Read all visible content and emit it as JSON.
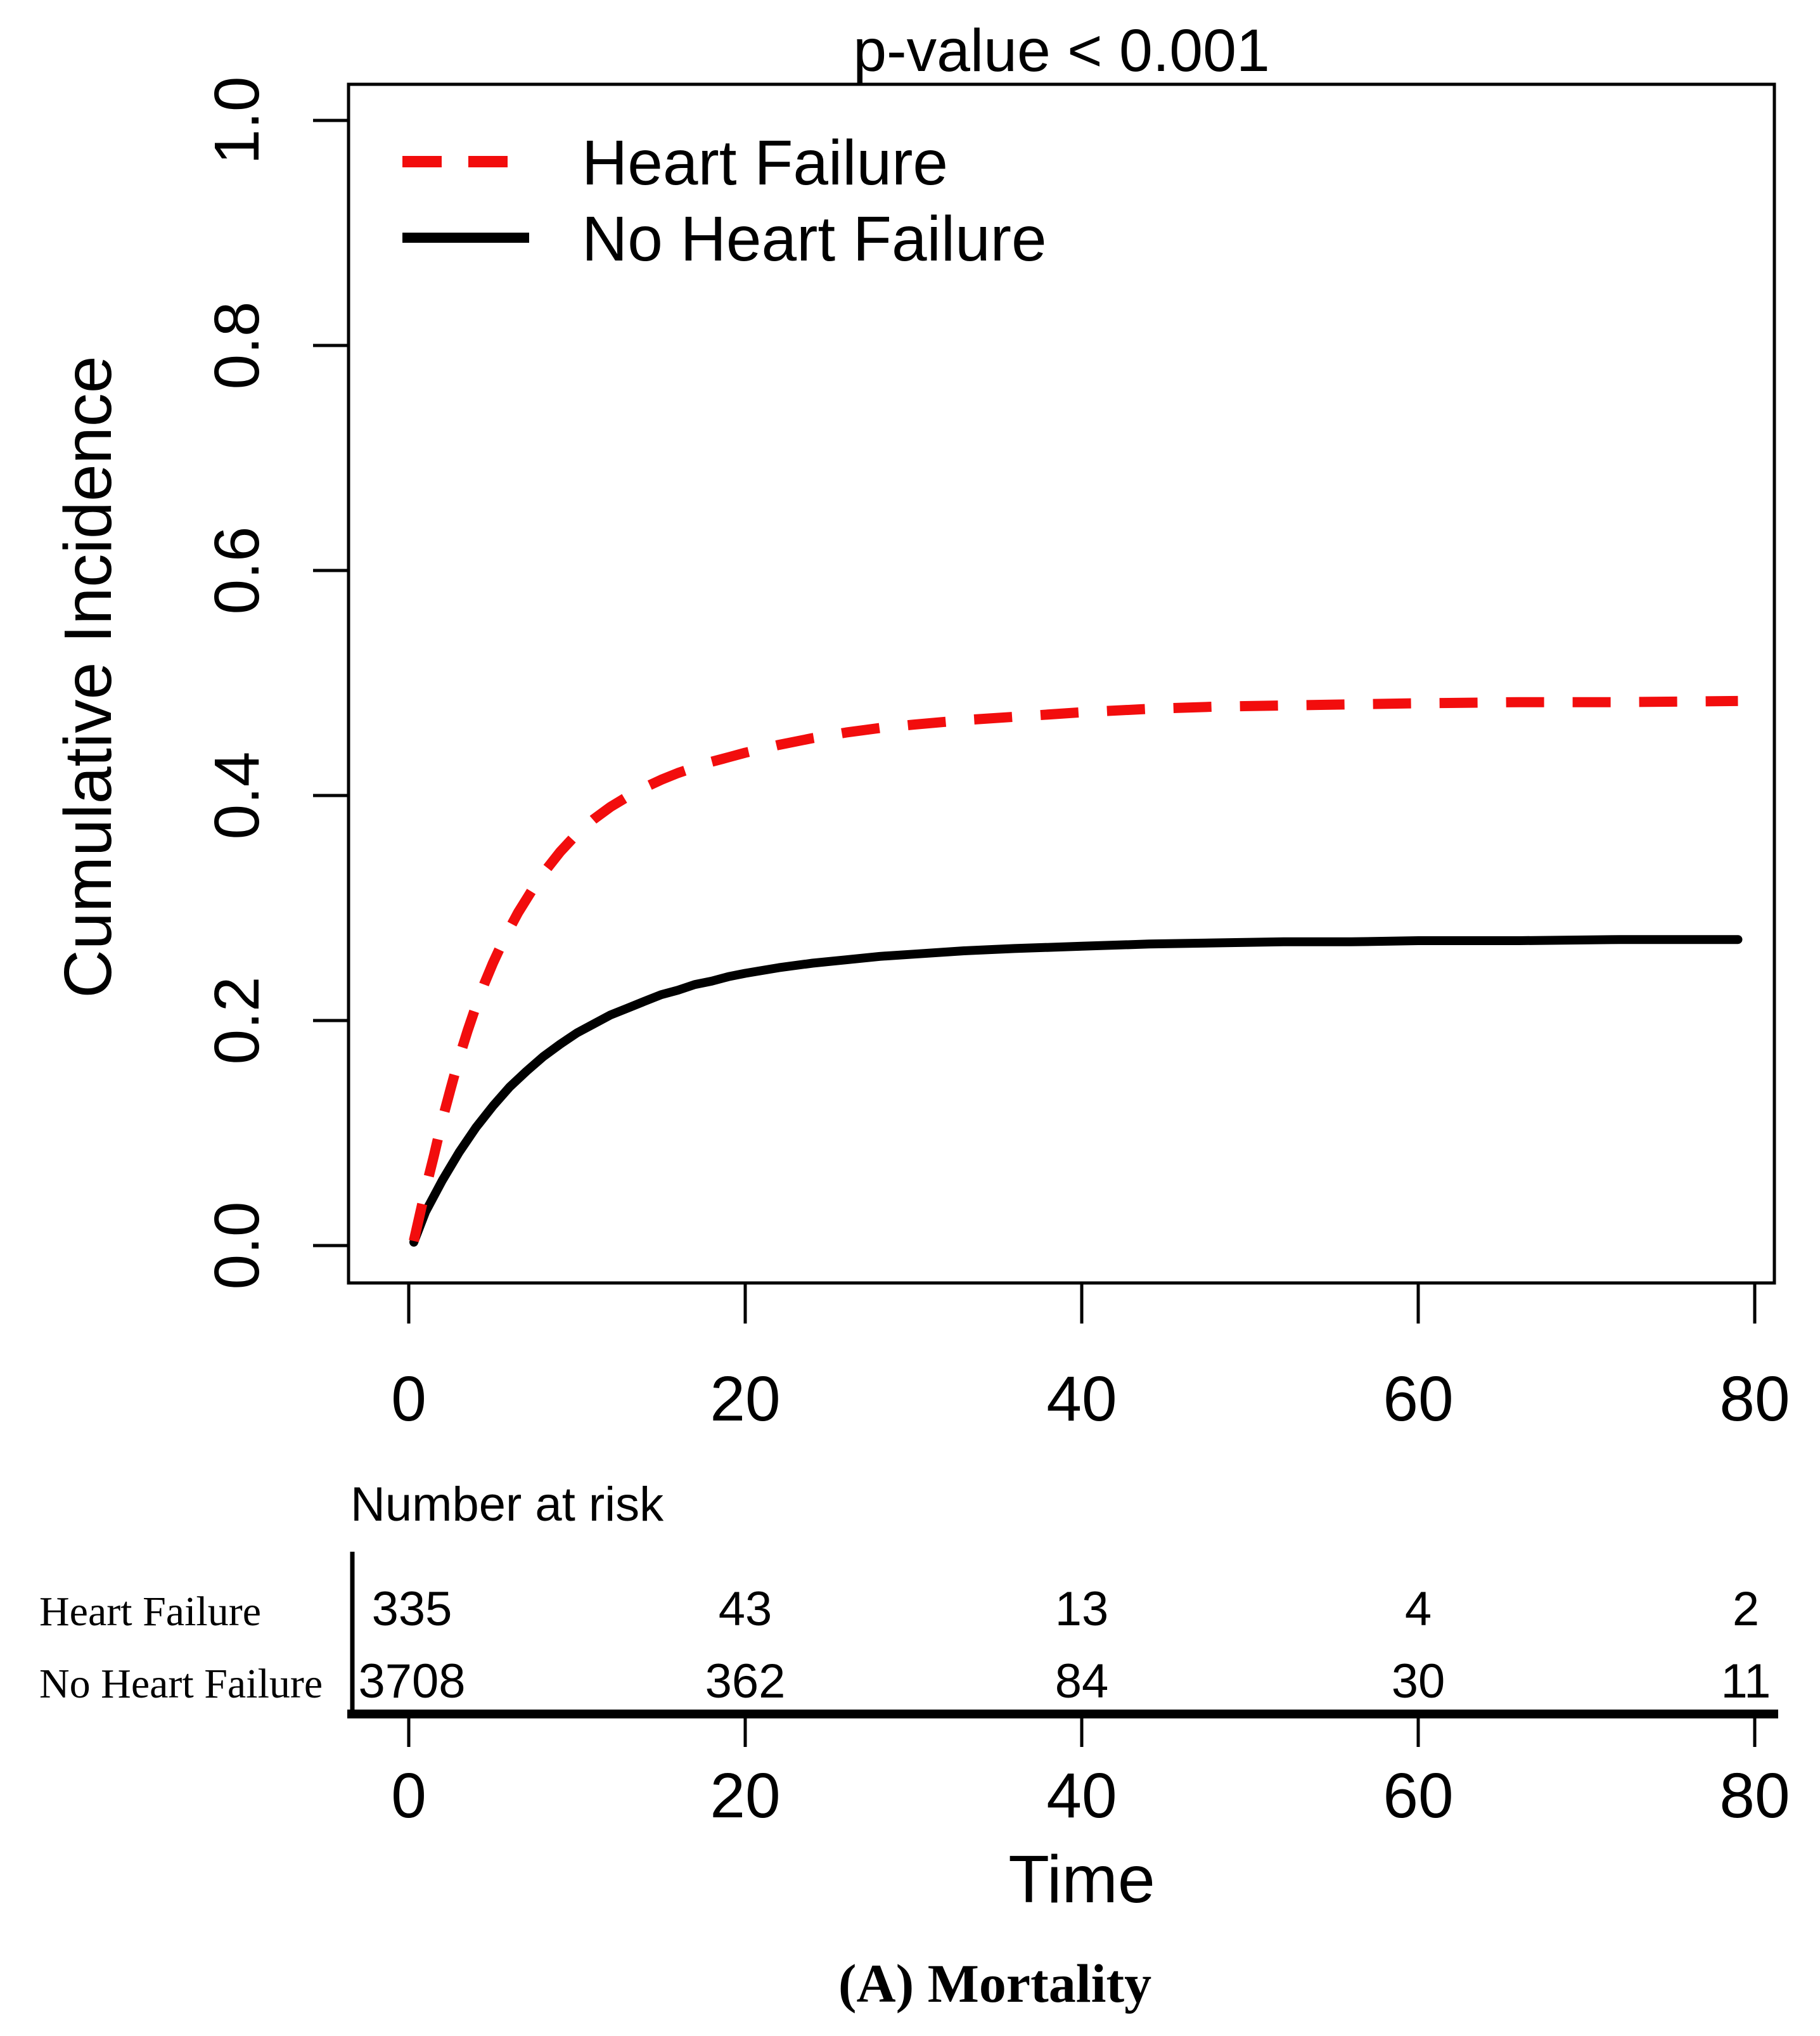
{
  "caption": "(A) Mortality",
  "legend": {
    "items": [
      {
        "label": "Heart Failure"
      },
      {
        "label": "No Heart Failure"
      }
    ]
  },
  "risk_table": {
    "header": "Number at risk",
    "axis_label": "Time",
    "time_points": [
      "0",
      "20",
      "40",
      "60",
      "80"
    ],
    "rows": [
      {
        "label": "Heart Failure",
        "values": [
          "335",
          "43",
          "13",
          "4",
          "2"
        ]
      },
      {
        "label": "No Heart Failure",
        "values": [
          "3708",
          "362",
          "84",
          "30",
          "11"
        ]
      }
    ]
  },
  "chart_data": {
    "type": "line",
    "title": "p-value < 0.001",
    "xlabel": "Time",
    "ylabel": "Cumulative Incidence",
    "xlim": [
      0,
      80
    ],
    "ylim": [
      0.0,
      1.0
    ],
    "xticks": [
      "0",
      "20",
      "40",
      "60",
      "80"
    ],
    "yticks": [
      "0.0",
      "0.2",
      "0.4",
      "0.6",
      "0.8",
      "1.0"
    ],
    "grid": false,
    "legend_position": "top-left",
    "series": [
      {
        "name": "No Heart Failure",
        "color": "#000000",
        "style": "solid",
        "points": [
          [
            0.3,
            0.003
          ],
          [
            1,
            0.03
          ],
          [
            2,
            0.058
          ],
          [
            3,
            0.083
          ],
          [
            4,
            0.105
          ],
          [
            5,
            0.124
          ],
          [
            6,
            0.141
          ],
          [
            7,
            0.155
          ],
          [
            8,
            0.168
          ],
          [
            9,
            0.179
          ],
          [
            10,
            0.189
          ],
          [
            11,
            0.197
          ],
          [
            12,
            0.205
          ],
          [
            13,
            0.211
          ],
          [
            14,
            0.217
          ],
          [
            15,
            0.223
          ],
          [
            16,
            0.227
          ],
          [
            17,
            0.232
          ],
          [
            18,
            0.235
          ],
          [
            19,
            0.239
          ],
          [
            20,
            0.242
          ],
          [
            22,
            0.247
          ],
          [
            24,
            0.251
          ],
          [
            26,
            0.254
          ],
          [
            28,
            0.257
          ],
          [
            30,
            0.259
          ],
          [
            33,
            0.262
          ],
          [
            36,
            0.264
          ],
          [
            40,
            0.266
          ],
          [
            44,
            0.268
          ],
          [
            48,
            0.269
          ],
          [
            52,
            0.27
          ],
          [
            56,
            0.27
          ],
          [
            60,
            0.271
          ],
          [
            66,
            0.271
          ],
          [
            72,
            0.272
          ],
          [
            79,
            0.272
          ]
        ]
      },
      {
        "name": "Heart Failure",
        "color": "#f20d0d",
        "style": "dashed",
        "points": [
          [
            0.3,
            0.004
          ],
          [
            1,
            0.05
          ],
          [
            1.5,
            0.08
          ],
          [
            2,
            0.112
          ],
          [
            2.5,
            0.14
          ],
          [
            3,
            0.167
          ],
          [
            3.5,
            0.191
          ],
          [
            4,
            0.213
          ],
          [
            4.5,
            0.233
          ],
          [
            5,
            0.251
          ],
          [
            5.5,
            0.267
          ],
          [
            6,
            0.282
          ],
          [
            6.5,
            0.296
          ],
          [
            7,
            0.308
          ],
          [
            7.5,
            0.32
          ],
          [
            8,
            0.331
          ],
          [
            9,
            0.35
          ],
          [
            10,
            0.366
          ],
          [
            11,
            0.379
          ],
          [
            12,
            0.39
          ],
          [
            13,
            0.399
          ],
          [
            14,
            0.407
          ],
          [
            15,
            0.414
          ],
          [
            16,
            0.42
          ],
          [
            17,
            0.425
          ],
          [
            18,
            0.43
          ],
          [
            19,
            0.434
          ],
          [
            20,
            0.438
          ],
          [
            22,
            0.445
          ],
          [
            24,
            0.451
          ],
          [
            26,
            0.456
          ],
          [
            28,
            0.46
          ],
          [
            30,
            0.463
          ],
          [
            33,
            0.467
          ],
          [
            36,
            0.47
          ],
          [
            40,
            0.474
          ],
          [
            44,
            0.477
          ],
          [
            48,
            0.479
          ],
          [
            52,
            0.48
          ],
          [
            56,
            0.481
          ],
          [
            60,
            0.482
          ],
          [
            66,
            0.483
          ],
          [
            72,
            0.483
          ],
          [
            79,
            0.484
          ]
        ]
      }
    ]
  }
}
